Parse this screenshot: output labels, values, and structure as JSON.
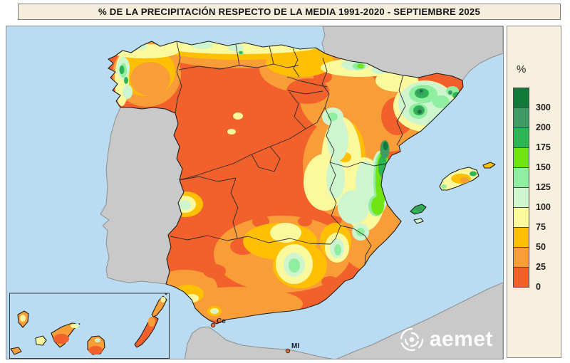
{
  "title": "% DE LA PRECIPITACIÓN RESPECTO DE LA MEDIA 1991-2020 - SEPTIEMBRE 2025",
  "legend": {
    "unit_label": "%",
    "scale": [
      {
        "boundary_label": "300",
        "color": "#117A38"
      },
      {
        "boundary_label": "200",
        "color": "#3D9B63"
      },
      {
        "boundary_label": "175",
        "color": "#2DB554"
      },
      {
        "boundary_label": "150",
        "color": "#70E512"
      },
      {
        "boundary_label": "125",
        "color": "#8FEE9F"
      },
      {
        "boundary_label": "100",
        "color": "#CEF5CE"
      },
      {
        "boundary_label": "75",
        "color": "#FAF99D"
      },
      {
        "boundary_label": "50",
        "color": "#FFC003"
      },
      {
        "boundary_label": "25",
        "color": "#F99D38"
      },
      {
        "boundary_label": "0",
        "color": "#F2602B"
      }
    ]
  },
  "map": {
    "labels": {
      "ceuta": "Ce",
      "melilla": "MI"
    },
    "logo_text": "aemet",
    "colors": {
      "sea": "#B9DCF2",
      "neighbor_land": "#C9C9C9",
      "neighbor_coast": "#8F8F8F",
      "spain_coast": "#1F1F1F",
      "region_border": "#2B2B2B"
    }
  }
}
